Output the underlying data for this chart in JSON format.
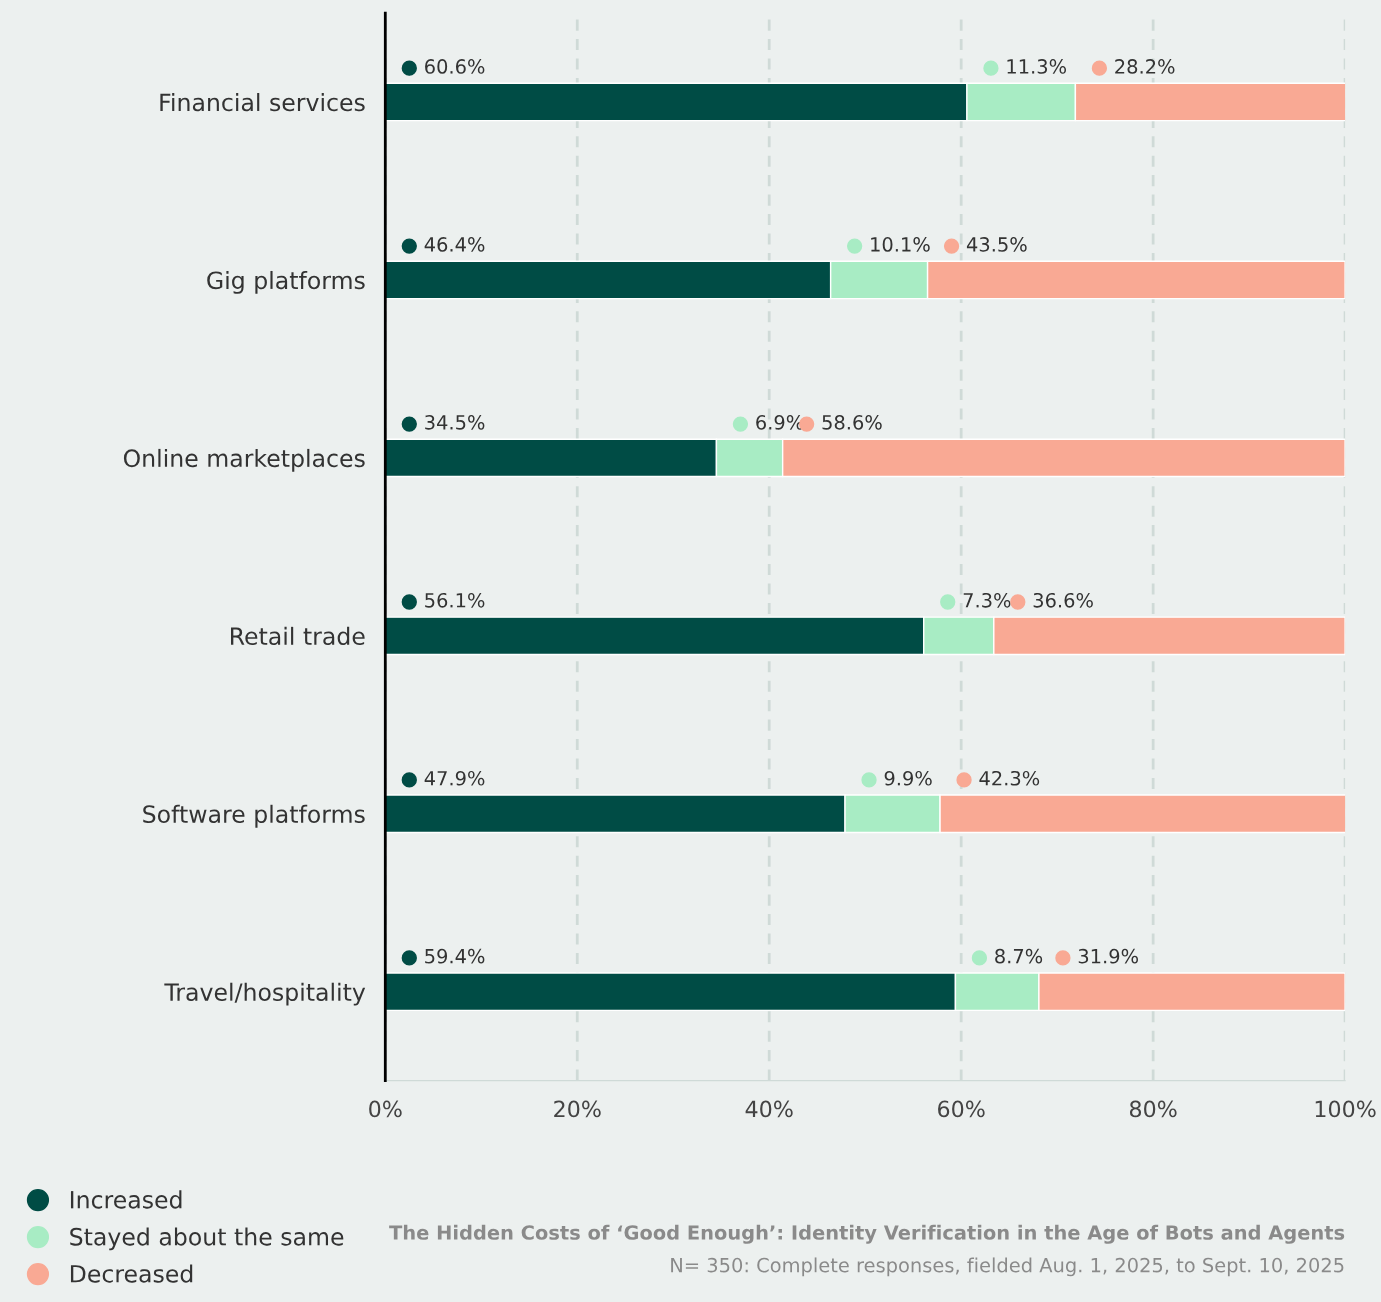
{
  "chart_data": {
    "type": "bar",
    "orientation": "horizontal",
    "stacked": true,
    "categories": [
      "Financial services",
      "Gig platforms",
      "Online marketplaces",
      "Retail trade",
      "Software platforms",
      "Travel/hospitality"
    ],
    "series": [
      {
        "name": "Increased",
        "color": "#004c45",
        "values": [
          60.6,
          46.4,
          34.5,
          56.1,
          47.9,
          59.4
        ],
        "value_labels": [
          "60.6%",
          "46.4%",
          "34.5%",
          "56.1%",
          "47.9%",
          "59.4%"
        ]
      },
      {
        "name": "Stayed about the same",
        "color": "#a8ecc4",
        "values": [
          11.3,
          10.1,
          6.9,
          7.3,
          9.9,
          8.7
        ],
        "value_labels": [
          "11.3%",
          "10.1%",
          "6.9%",
          "7.3%",
          "9.9%",
          "8.7%"
        ]
      },
      {
        "name": "Decreased",
        "color": "#f9a994",
        "values": [
          28.2,
          43.5,
          58.6,
          36.6,
          42.3,
          31.9
        ],
        "value_labels": [
          "28.2%",
          "43.5%",
          "58.6%",
          "36.6%",
          "42.3%",
          "31.9%"
        ]
      }
    ],
    "xlim": [
      0,
      100
    ],
    "xticks": [
      {
        "value": 0,
        "label": "0%"
      },
      {
        "value": 20,
        "label": "20%"
      },
      {
        "value": 40,
        "label": "40%"
      },
      {
        "value": 60,
        "label": "60%"
      },
      {
        "value": 80,
        "label": "80%"
      },
      {
        "value": 100,
        "label": "100%"
      }
    ],
    "grid": "x",
    "legend": "bottom left",
    "annotations": [
      "The Hidden Costs of ‘Good Enough’: Identity Verification in the Age of Bots and Agents",
      "N= 350: Complete responses, fielded Aug. 1, 2025, to Sept. 10, 2025"
    ]
  }
}
